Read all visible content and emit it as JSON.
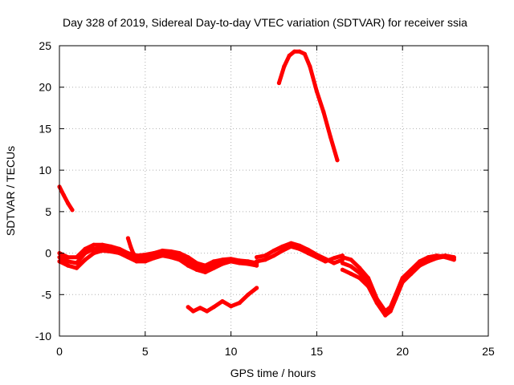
{
  "chart_data": {
    "type": "line",
    "title": "Day 328 of 2019, Sidereal Day-to-day VTEC variation (SDTVAR) for receiver ssia",
    "xlabel": "GPS time / hours",
    "ylabel": "SDTVAR / TECUs",
    "xlim": [
      0,
      25
    ],
    "ylim": [
      -10,
      25
    ],
    "xticks": [
      0,
      5,
      10,
      15,
      20,
      25
    ],
    "yticks": [
      -10,
      -5,
      0,
      5,
      10,
      15,
      20,
      25
    ],
    "xtick_labels": [
      "0",
      "5",
      "10",
      "15",
      "20",
      "25"
    ],
    "ytick_labels": [
      "-10",
      "-5",
      "0",
      "5",
      "10",
      "15",
      "20",
      "25"
    ],
    "grid": true,
    "color": "#ff0000",
    "series": [
      {
        "name": "arc-high",
        "x": [
          12.8,
          13.1,
          13.4,
          13.7,
          14.0,
          14.3,
          14.6,
          15.0,
          15.4,
          15.8,
          16.2
        ],
        "y": [
          20.5,
          22.5,
          23.8,
          24.3,
          24.3,
          24.0,
          22.5,
          19.5,
          17.0,
          14.0,
          11.2
        ]
      },
      {
        "name": "arc-early",
        "x": [
          0.0,
          0.25,
          0.5,
          0.75
        ],
        "y": [
          8.0,
          7.0,
          6.0,
          5.2
        ]
      },
      {
        "name": "band-1",
        "x": [
          0,
          0.5,
          1.0,
          1.5,
          2.0,
          2.5,
          3.0,
          3.5,
          4.0,
          4.5,
          5.0,
          5.5,
          6.0,
          6.5,
          7.0,
          7.5,
          8.0,
          8.5,
          9.0,
          9.5,
          10.0,
          10.5,
          11.0,
          11.5
        ],
        "y": [
          0.0,
          -0.5,
          -0.5,
          0.5,
          1.0,
          1.0,
          0.8,
          0.5,
          0.0,
          -0.3,
          -0.2,
          0.0,
          0.3,
          0.2,
          0.0,
          -0.5,
          -1.2,
          -1.5,
          -1.0,
          -0.8,
          -0.7,
          -0.9,
          -1.0,
          -1.2
        ]
      },
      {
        "name": "band-2",
        "x": [
          0,
          0.5,
          1.0,
          1.5,
          2.0,
          2.5,
          3.0,
          3.5,
          4.0,
          4.5,
          5.0,
          5.5,
          6.0,
          6.5,
          7.0,
          7.5,
          8.0,
          8.5,
          9.0,
          9.5,
          10.0,
          10.5,
          11.0,
          11.5
        ],
        "y": [
          -1.0,
          -1.5,
          -1.8,
          -0.8,
          0.0,
          0.3,
          0.2,
          0.0,
          -0.5,
          -1.0,
          -1.0,
          -0.6,
          -0.3,
          -0.5,
          -0.8,
          -1.5,
          -2.0,
          -2.3,
          -1.8,
          -1.3,
          -1.0,
          -1.2,
          -1.3,
          -1.5
        ]
      },
      {
        "name": "band-3",
        "x": [
          0,
          0.5,
          1.0,
          1.5,
          2.0,
          2.5,
          3.0,
          3.5,
          4.0,
          4.5,
          5.0,
          5.5,
          6.0,
          6.5,
          7.0,
          7.5,
          8.0,
          8.5,
          9.0,
          9.5,
          10.0,
          10.5,
          11.0,
          11.5
        ],
        "y": [
          -0.5,
          -1.0,
          -1.2,
          0.0,
          0.5,
          0.6,
          0.5,
          0.3,
          -0.2,
          -0.6,
          -0.6,
          -0.3,
          0.0,
          -0.2,
          -0.5,
          -1.0,
          -1.6,
          -1.9,
          -1.4,
          -1.0,
          -0.9,
          -1.0,
          -1.1,
          -1.3
        ]
      },
      {
        "name": "spike-4h",
        "x": [
          4.0,
          4.15,
          4.3,
          4.5
        ],
        "y": [
          1.8,
          0.8,
          0.0,
          -0.5
        ]
      },
      {
        "name": "arc-low",
        "x": [
          7.5,
          7.8,
          8.2,
          8.6,
          9.0,
          9.5,
          10.0,
          10.5,
          11.0,
          11.5
        ],
        "y": [
          -6.5,
          -7.0,
          -6.6,
          -7.0,
          -6.5,
          -5.8,
          -6.4,
          -6.0,
          -5.0,
          -4.2
        ]
      },
      {
        "name": "band-mid-1",
        "x": [
          11.5,
          12.0,
          12.5,
          13.0,
          13.5,
          14.0,
          14.5,
          15.0,
          15.5,
          16.0,
          16.5
        ],
        "y": [
          -1.0,
          -0.8,
          -0.3,
          0.3,
          0.8,
          0.5,
          0.0,
          -0.5,
          -1.0,
          -0.6,
          -0.3
        ]
      },
      {
        "name": "band-mid-2",
        "x": [
          11.5,
          12.0,
          12.5,
          13.0,
          13.5,
          14.0,
          14.5,
          15.0,
          15.5,
          16.0,
          16.5
        ],
        "y": [
          -0.5,
          -0.3,
          0.3,
          0.8,
          1.2,
          0.9,
          0.4,
          -0.2,
          -0.7,
          -1.2,
          -0.8
        ]
      },
      {
        "name": "band-late-1",
        "x": [
          16.5,
          17.0,
          17.5,
          18.0,
          18.5,
          19.0,
          19.3,
          19.6,
          20.0,
          20.5,
          21.0,
          21.5,
          22.0,
          22.5,
          23.0
        ],
        "y": [
          -0.5,
          -0.8,
          -1.8,
          -3.0,
          -5.5,
          -7.0,
          -6.5,
          -5.0,
          -3.0,
          -2.0,
          -1.0,
          -0.5,
          -0.3,
          -0.5,
          -0.8
        ]
      },
      {
        "name": "band-late-2",
        "x": [
          16.5,
          17.0,
          17.5,
          18.0,
          18.5,
          19.0,
          19.3,
          19.6,
          20.0,
          20.5,
          21.0,
          21.5,
          22.0,
          22.5,
          23.0
        ],
        "y": [
          -2.0,
          -2.5,
          -3.0,
          -4.0,
          -6.0,
          -7.5,
          -7.0,
          -5.5,
          -3.5,
          -2.5,
          -1.5,
          -1.0,
          -0.6,
          -0.4,
          -0.6
        ]
      },
      {
        "name": "band-late-3",
        "x": [
          16.5,
          17.0,
          17.5,
          18.0,
          18.5,
          19.0,
          19.3,
          19.6,
          20.0,
          20.5,
          21.0,
          21.5,
          22.0,
          22.5,
          23.0
        ],
        "y": [
          -1.2,
          -1.6,
          -2.4,
          -3.5,
          -5.8,
          -7.2,
          -6.8,
          -5.3,
          -3.2,
          -2.2,
          -1.2,
          -0.7,
          -0.4,
          -0.3,
          -0.5
        ]
      }
    ]
  }
}
